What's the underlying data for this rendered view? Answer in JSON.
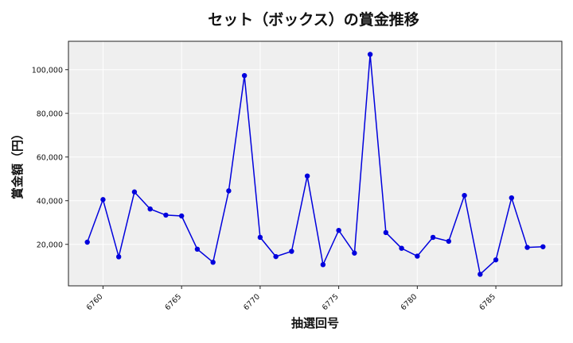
{
  "chart_data": {
    "type": "line",
    "title": "セット（ボックス）の賞金推移",
    "xlabel": "抽選回号",
    "ylabel": "賞金額（円）",
    "xlim": [
      6757.8,
      6789.2
    ],
    "ylim": [
      1000,
      113000
    ],
    "x_ticks": [
      6760,
      6765,
      6770,
      6775,
      6780,
      6785
    ],
    "y_ticks": [
      20000,
      40000,
      60000,
      80000,
      100000
    ],
    "y_tick_labels": [
      "20,000",
      "40,000",
      "60,000",
      "80,000",
      "100,000"
    ],
    "grid": true,
    "series": [
      {
        "color": "#0000dd",
        "x": [
          6759,
          6760,
          6761,
          6762,
          6763,
          6764,
          6765,
          6766,
          6767,
          6768,
          6769,
          6770,
          6771,
          6772,
          6773,
          6774,
          6775,
          6776,
          6777,
          6778,
          6779,
          6780,
          6781,
          6782,
          6783,
          6784,
          6785,
          6786,
          6787,
          6788
        ],
        "values": [
          21000,
          40500,
          14300,
          44000,
          36200,
          33400,
          33000,
          17800,
          11800,
          44500,
          97300,
          23200,
          14400,
          16800,
          51300,
          10700,
          26400,
          16000,
          107000,
          25400,
          18200,
          14600,
          23200,
          21400,
          42400,
          6300,
          12900,
          41300,
          18600,
          18900
        ]
      }
    ]
  }
}
